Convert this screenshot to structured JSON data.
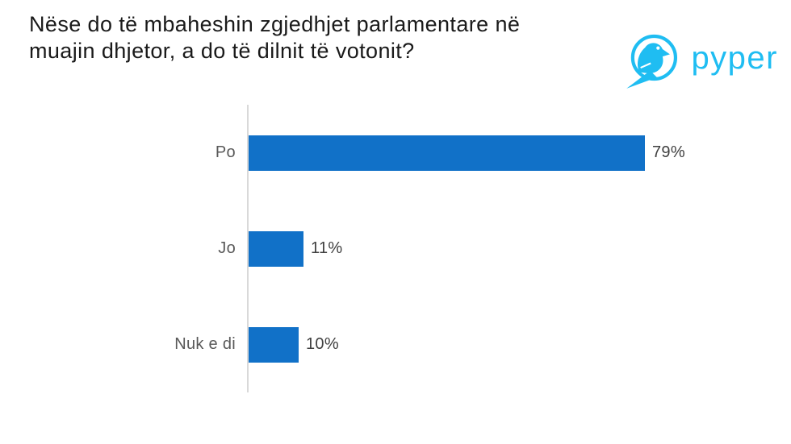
{
  "header": {
    "title_lines": [
      "Nëse do të mbaheshin zgjedhjet parlamentare në",
      "muajin dhjetor, a do të dilnit të votonit?"
    ],
    "logo_text": "pyper",
    "logo_color": "#1fbdf2"
  },
  "chart_data": {
    "type": "bar",
    "orientation": "horizontal",
    "title": "Nëse do të mbaheshin zgjedhjet parlamentare në muajin dhjetor, a do të dilnit të votonit?",
    "categories": [
      "Po",
      "Jo",
      "Nuk e di"
    ],
    "values": [
      79,
      11,
      10
    ],
    "value_labels": [
      "79%",
      "11%",
      "10%"
    ],
    "xlabel": "",
    "ylabel": "",
    "xlim": [
      0,
      100
    ],
    "grid": false,
    "legend": false,
    "bar_color": "#1171c8",
    "category_label_color": "#595959",
    "value_label_color": "#404040",
    "axis_line_color": "#d9d9d9"
  }
}
